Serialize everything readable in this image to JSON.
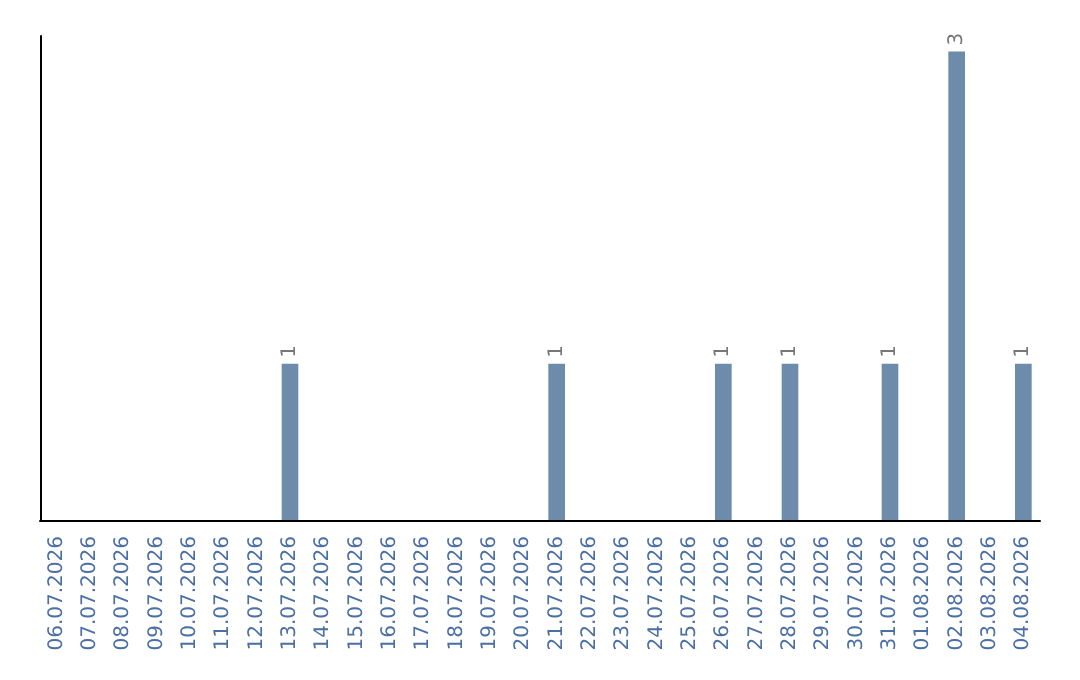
{
  "chart_data": {
    "type": "bar",
    "categories": [
      "06.07.2026",
      "07.07.2026",
      "08.07.2026",
      "09.07.2026",
      "10.07.2026",
      "11.07.2026",
      "12.07.2026",
      "13.07.2026",
      "14.07.2026",
      "15.07.2026",
      "16.07.2026",
      "17.07.2026",
      "18.07.2026",
      "19.07.2026",
      "20.07.2026",
      "21.07.2026",
      "22.07.2026",
      "23.07.2026",
      "24.07.2026",
      "25.07.2026",
      "26.07.2026",
      "27.07.2026",
      "28.07.2026",
      "29.07.2026",
      "30.07.2026",
      "31.07.2026",
      "01.08.2026",
      "02.08.2026",
      "03.08.2026",
      "04.08.2026"
    ],
    "values": [
      0,
      0,
      0,
      0,
      0,
      0,
      0,
      1,
      0,
      0,
      0,
      0,
      0,
      0,
      0,
      1,
      0,
      0,
      0,
      0,
      1,
      0,
      1,
      0,
      0,
      1,
      0,
      3,
      0,
      1
    ],
    "value_labels": [
      null,
      null,
      null,
      null,
      null,
      null,
      null,
      "1",
      null,
      null,
      null,
      null,
      null,
      null,
      null,
      "1",
      null,
      null,
      null,
      null,
      "1",
      null,
      "1",
      null,
      null,
      "1",
      null,
      "3",
      null,
      "1"
    ],
    "color": "#6d8cab",
    "ylim": [
      0,
      3.1
    ],
    "tick_labels": "x"
  }
}
